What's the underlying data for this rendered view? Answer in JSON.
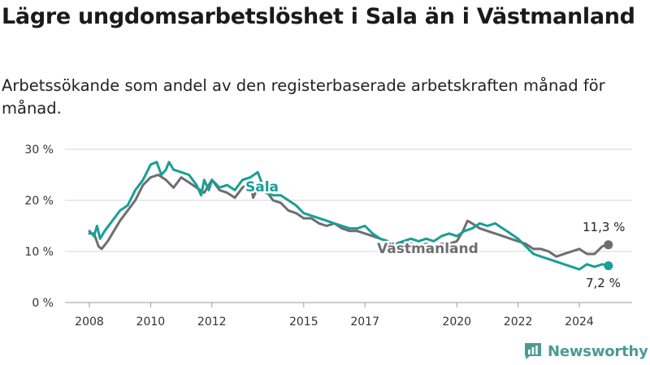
{
  "title": "Lägre ungdomsarbetslöshet i Sala än i Västmanland",
  "subtitle": "Arbetssökande som andel av den registerbaserade arbetskraften månad för månad.",
  "brand": {
    "name": "Newsworthy",
    "color": "#4a9a96",
    "icon": "newsworthy-bar-chart-logo"
  },
  "chart_data": {
    "type": "line",
    "title": "Lägre ungdomsarbetslöshet i Sala än i Västmanland",
    "subtitle": "Arbetssökande som andel av den registerbaserade arbetskraften månad för månad.",
    "ylim": [
      0,
      30
    ],
    "xlim": [
      2008.0,
      2025.0
    ],
    "y_ticks": [
      0,
      10,
      20,
      30
    ],
    "y_tick_labels": [
      "0 %",
      "10 %",
      "20 %",
      "30 %"
    ],
    "x_ticks": [
      2008,
      2010,
      2012,
      2015,
      2017,
      2020,
      2022,
      2024
    ],
    "x_tick_labels": [
      "2008",
      "2010",
      "2012",
      "2015",
      "2017",
      "2020",
      "2022",
      "2024"
    ],
    "grid": "horizontal",
    "series": [
      {
        "name": "Sala",
        "color": "#1a9e96",
        "end_label": "7,2 %",
        "x": [
          2008.0,
          2008.15,
          2008.25,
          2008.35,
          2008.5,
          2008.75,
          2009.0,
          2009.25,
          2009.5,
          2009.75,
          2010.0,
          2010.2,
          2010.35,
          2010.5,
          2010.6,
          2010.75,
          2011.0,
          2011.25,
          2011.5,
          2011.65,
          2011.75,
          2011.9,
          2012.0,
          2012.25,
          2012.5,
          2012.75,
          2013.0,
          2013.25,
          2013.5,
          2013.75,
          2014.0,
          2014.25,
          2014.5,
          2014.75,
          2015.0,
          2015.25,
          2015.5,
          2015.75,
          2016.0,
          2016.25,
          2016.5,
          2016.75,
          2017.0,
          2017.25,
          2017.5,
          2017.75,
          2018.0,
          2018.25,
          2018.5,
          2018.75,
          2019.0,
          2019.25,
          2019.5,
          2019.75,
          2020.0,
          2020.25,
          2020.5,
          2020.75,
          2021.0,
          2021.25,
          2021.5,
          2021.75,
          2022.0,
          2022.25,
          2022.5,
          2022.75,
          2023.0,
          2023.25,
          2023.5,
          2023.75,
          2024.0,
          2024.25,
          2024.5,
          2024.75,
          2024.95
        ],
        "values": [
          14,
          13,
          15,
          12.5,
          14,
          16,
          18,
          19,
          22,
          24,
          27,
          27.5,
          25,
          26,
          27.5,
          26,
          25.5,
          25,
          23,
          21,
          24,
          22,
          24,
          22.5,
          23,
          22,
          24,
          24.5,
          25.5,
          21.5,
          21,
          21,
          20,
          19,
          17.5,
          17,
          16.5,
          16,
          15.5,
          15,
          14.5,
          14.5,
          15,
          13.5,
          12.5,
          12,
          11.5,
          12,
          12.5,
          12,
          12.5,
          12,
          13,
          13.5,
          13,
          14,
          14.5,
          15.5,
          15,
          15.5,
          14.5,
          13.5,
          12.5,
          11,
          9.5,
          9,
          8.5,
          8,
          7.5,
          7,
          6.5,
          7.5,
          7,
          7.5,
          7.2
        ]
      },
      {
        "name": "Västmanland",
        "color": "#6e6e72",
        "end_label": "11,3 %",
        "x": [
          2008.0,
          2008.15,
          2008.3,
          2008.4,
          2008.6,
          2008.8,
          2009.0,
          2009.25,
          2009.5,
          2009.75,
          2010.0,
          2010.25,
          2010.5,
          2010.75,
          2011.0,
          2011.25,
          2011.5,
          2011.75,
          2012.0,
          2012.25,
          2012.5,
          2012.75,
          2013.0,
          2013.25,
          2013.35,
          2013.5,
          2013.75,
          2014.0,
          2014.25,
          2014.5,
          2014.75,
          2015.0,
          2015.25,
          2015.5,
          2015.75,
          2016.0,
          2016.25,
          2016.5,
          2016.75,
          2017.0,
          2017.25,
          2017.5,
          2017.75,
          2018.0,
          2018.25,
          2018.5,
          2018.75,
          2019.0,
          2019.25,
          2019.5,
          2019.75,
          2020.0,
          2020.2,
          2020.35,
          2020.5,
          2020.75,
          2021.0,
          2021.25,
          2021.5,
          2021.75,
          2022.0,
          2022.25,
          2022.5,
          2022.75,
          2023.0,
          2023.25,
          2023.5,
          2023.75,
          2024.0,
          2024.25,
          2024.5,
          2024.75,
          2024.95
        ],
        "values": [
          13.5,
          13.5,
          11,
          10.5,
          12,
          14,
          16,
          18,
          20,
          23,
          24.5,
          25,
          24,
          22.5,
          24.5,
          23.5,
          22.5,
          21.5,
          24,
          22,
          21.5,
          20.5,
          22.5,
          23.5,
          20.5,
          22.5,
          22,
          20,
          19.5,
          18,
          17.5,
          16.5,
          16.5,
          15.5,
          15,
          15.5,
          14.5,
          14,
          14,
          13.5,
          13,
          12.5,
          12,
          11.5,
          11.5,
          11.5,
          11,
          11.5,
          11,
          11.5,
          11.5,
          12,
          14,
          16,
          15.5,
          14.5,
          14,
          13.5,
          13,
          12.5,
          12,
          11.5,
          10.5,
          10.5,
          10,
          9,
          9.5,
          10,
          10.5,
          9.5,
          9.5,
          11,
          11.3
        ]
      }
    ]
  }
}
